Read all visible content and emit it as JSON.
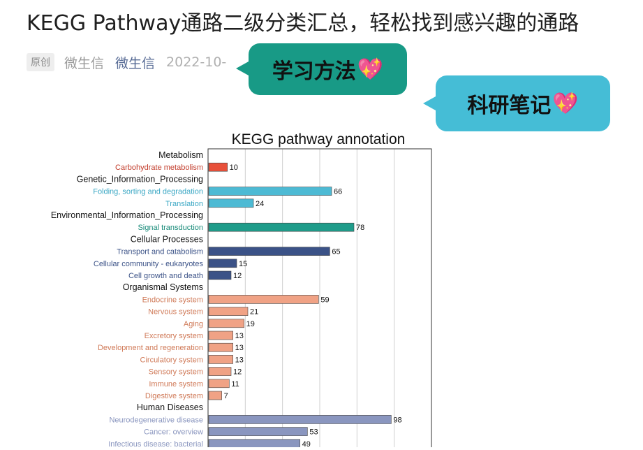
{
  "article": {
    "title": "KEGG Pathway通路二级分类汇总，轻松找到感兴趣的通路",
    "badge": "原创",
    "author": "微生信",
    "account": "微生信",
    "date": "2022-10-"
  },
  "stickers": [
    {
      "label": "学习方法",
      "icon": "sparkling-heart-icon"
    },
    {
      "label": "科研笔记",
      "icon": "sparkling-heart-icon"
    }
  ],
  "chart_data": {
    "type": "bar",
    "orientation": "horizontal",
    "title": "KEGG pathway annotation",
    "grid": true,
    "xlim": [
      0,
      120
    ],
    "rows": [
      {
        "kind": "group",
        "label": "Metabolism"
      },
      {
        "kind": "bar",
        "label": "Carbohydrate metabolism",
        "value": 10,
        "color": "#e8503a"
      },
      {
        "kind": "group",
        "label": "Genetic_Information_Processing"
      },
      {
        "kind": "bar",
        "label": "Folding, sorting and degradation",
        "value": 66,
        "color": "#4dbad4"
      },
      {
        "kind": "bar",
        "label": "Translation",
        "value": 24,
        "color": "#4dbad4"
      },
      {
        "kind": "group",
        "label": "Environmental_Information_Processing"
      },
      {
        "kind": "bar",
        "label": "Signal transduction",
        "value": 78,
        "color": "#1f9c8a"
      },
      {
        "kind": "group",
        "label": "Cellular Processes"
      },
      {
        "kind": "bar",
        "label": "Transport and catabolism",
        "value": 65,
        "color": "#3b5287"
      },
      {
        "kind": "bar",
        "label": "Cellular community - eukaryotes",
        "value": 15,
        "color": "#3b5287"
      },
      {
        "kind": "bar",
        "label": "Cell growth and death",
        "value": 12,
        "color": "#3b5287"
      },
      {
        "kind": "group",
        "label": "Organismal Systems"
      },
      {
        "kind": "bar",
        "label": "Endocrine system",
        "value": 59,
        "color": "#f0a285"
      },
      {
        "kind": "bar",
        "label": "Nervous system",
        "value": 21,
        "color": "#f0a285"
      },
      {
        "kind": "bar",
        "label": "Aging",
        "value": 19,
        "color": "#f0a285"
      },
      {
        "kind": "bar",
        "label": "Excretory system",
        "value": 13,
        "color": "#f0a285"
      },
      {
        "kind": "bar",
        "label": "Development and regeneration",
        "value": 13,
        "color": "#f0a285"
      },
      {
        "kind": "bar",
        "label": "Circulatory system",
        "value": 13,
        "color": "#f0a285"
      },
      {
        "kind": "bar",
        "label": "Sensory system",
        "value": 12,
        "color": "#f0a285"
      },
      {
        "kind": "bar",
        "label": "Immune system",
        "value": 11,
        "color": "#f0a285"
      },
      {
        "kind": "bar",
        "label": "Digestive system",
        "value": 7,
        "color": "#f0a285"
      },
      {
        "kind": "group",
        "label": "Human Diseases"
      },
      {
        "kind": "bar",
        "label": "Neurodegenerative disease",
        "value": 98,
        "color": "#8a96bf"
      },
      {
        "kind": "bar",
        "label": "Cancer: overview",
        "value": 53,
        "color": "#8a96bf"
      },
      {
        "kind": "bar",
        "label": "Infectious disease: bacterial",
        "value": 49,
        "color": "#8a96bf"
      }
    ]
  }
}
